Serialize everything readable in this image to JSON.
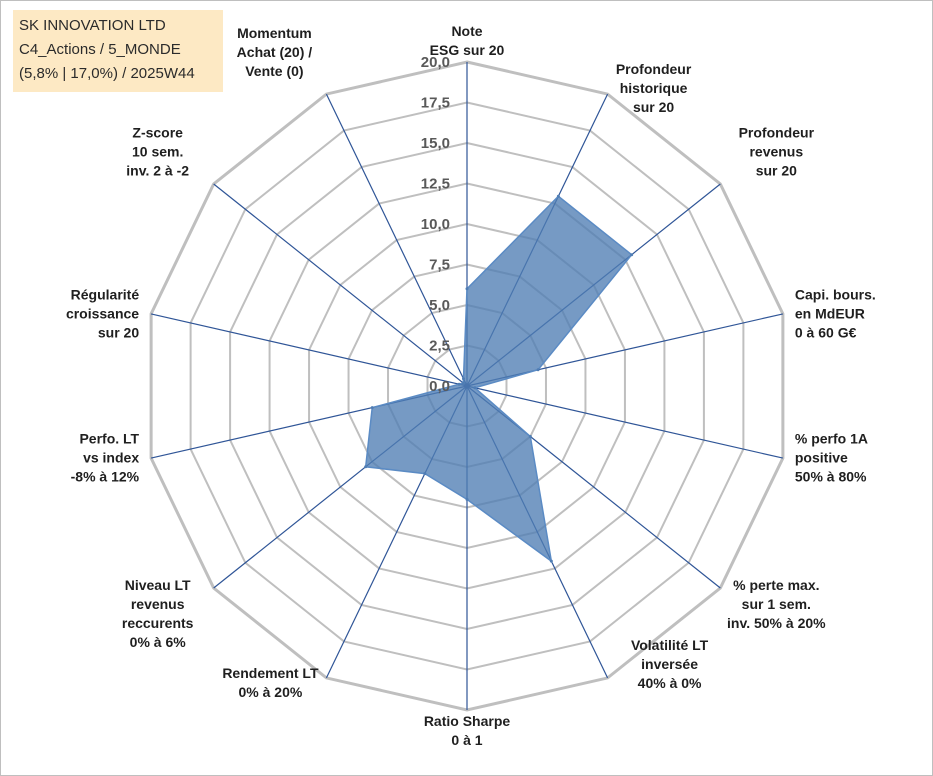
{
  "info": {
    "line1": "SK INNOVATION LTD",
    "line2": "C4_Actions / 5_MONDE",
    "line3": "(5,8% | 17,0%) / 2025W44"
  },
  "colors": {
    "grid": "#bfbfbf",
    "spoke": "#2f5597",
    "fill": "#4f7db4",
    "fill_stroke": "#5b8bc4",
    "info_bg": "#fde9c4"
  },
  "chart_data": {
    "type": "radar",
    "title": "",
    "rlim": [
      0,
      20
    ],
    "ticks": [
      "0,0",
      "2,5",
      "5,0",
      "7,5",
      "10,0",
      "12,5",
      "15,0",
      "17,5",
      "20,0"
    ],
    "grid": true,
    "axes": [
      {
        "label": [
          "Note",
          "ESG sur 20"
        ],
        "value": 6.0
      },
      {
        "label": [
          "Profondeur",
          "historique",
          "sur 20"
        ],
        "value": 13.0
      },
      {
        "label": [
          "Profondeur",
          "revenus",
          "sur 20"
        ],
        "value": 13.0
      },
      {
        "label": [
          "Capi. bours.",
          "en MdEUR",
          "0 à 60 G€"
        ],
        "value": 4.5
      },
      {
        "label": [
          "% perfo 1A",
          "positive",
          "50% à 80%"
        ],
        "value": 0.5
      },
      {
        "label": [
          "% perte max.",
          "sur 1 sem.",
          "inv. 50% à 20%"
        ],
        "value": 5.0
      },
      {
        "label": [
          "Volatilité LT",
          "inversée",
          "40% à 0%"
        ],
        "value": 12.0
      },
      {
        "label": [
          "Ratio Sharpe",
          "0 à 1"
        ],
        "value": 7.0
      },
      {
        "label": [
          "Rendement LT",
          "0% à 20%"
        ],
        "value": 6.0
      },
      {
        "label": [
          "Niveau LT",
          "revenus",
          "reccurents",
          "0% à 6%"
        ],
        "value": 8.0
      },
      {
        "label": [
          "Perfo. LT",
          "vs index",
          "-8% à 12%"
        ],
        "value": 6.0
      },
      {
        "label": [
          "Régularité",
          "croissance",
          "sur 20"
        ],
        "value": 0.5
      },
      {
        "label": [
          "Z-score",
          "10 sem.",
          "inv. 2 à -2"
        ],
        "value": 0.3
      },
      {
        "label": [
          "Momentum",
          "Achat (20) /",
          "Vente (0)"
        ],
        "value": 0.5
      }
    ]
  }
}
